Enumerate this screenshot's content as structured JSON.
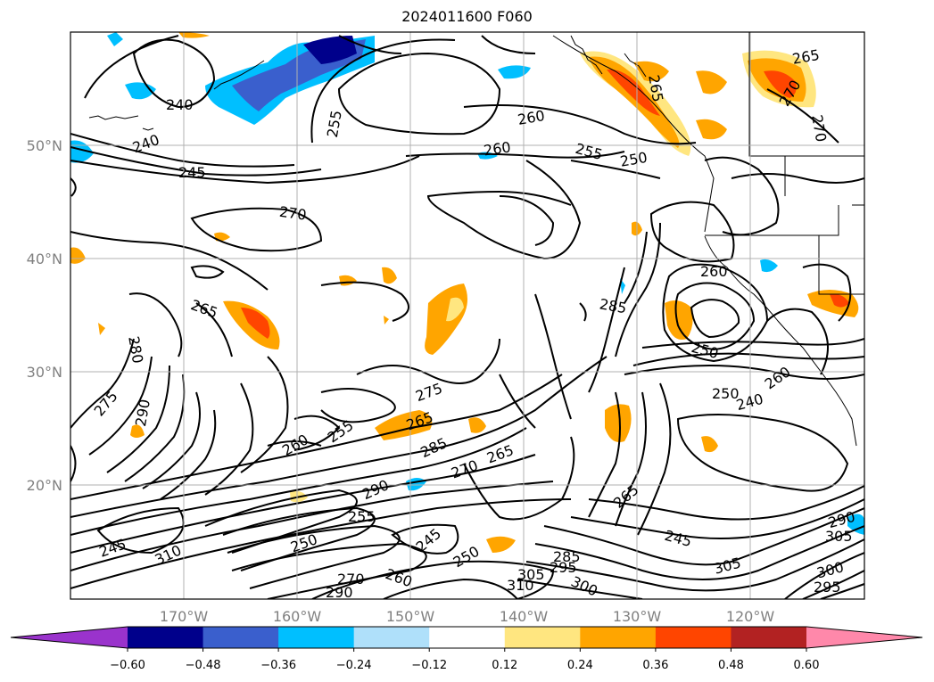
{
  "title": "2024011600 F060",
  "map": {
    "lat_labels": [
      "50°N",
      "40°N",
      "30°N",
      "20°N"
    ],
    "lon_labels": [
      "170°W",
      "160°W",
      "150°W",
      "140°W",
      "130°W",
      "120°W"
    ],
    "contour_labels": [
      {
        "text": "240",
        "name": "contour-label-240a"
      },
      {
        "text": "240",
        "name": "contour-label-240b"
      },
      {
        "text": "245",
        "name": "contour-label-245a"
      },
      {
        "text": "255",
        "name": "contour-label-255a"
      },
      {
        "text": "260",
        "name": "contour-label-260a"
      },
      {
        "text": "260",
        "name": "contour-label-260b"
      },
      {
        "text": "255",
        "name": "contour-label-255b"
      },
      {
        "text": "250",
        "name": "contour-label-250a"
      },
      {
        "text": "265",
        "name": "contour-label-265a"
      },
      {
        "text": "265",
        "name": "contour-label-265b"
      },
      {
        "text": "270",
        "name": "contour-label-270a"
      },
      {
        "text": "270",
        "name": "contour-label-270b"
      },
      {
        "text": "270",
        "name": "contour-label-270c"
      },
      {
        "text": "265",
        "name": "contour-label-265c"
      },
      {
        "text": "280",
        "name": "contour-label-280a"
      },
      {
        "text": "275",
        "name": "contour-label-275a"
      },
      {
        "text": "290",
        "name": "contour-label-290a"
      },
      {
        "text": "285",
        "name": "contour-label-285a"
      },
      {
        "text": "260",
        "name": "contour-label-260c"
      },
      {
        "text": "250",
        "name": "contour-label-250b"
      },
      {
        "text": "260",
        "name": "contour-label-260d"
      },
      {
        "text": "250",
        "name": "contour-label-250c"
      },
      {
        "text": "240",
        "name": "contour-label-240c"
      },
      {
        "text": "275",
        "name": "contour-label-275b"
      },
      {
        "text": "255",
        "name": "contour-label-255c"
      },
      {
        "text": "260",
        "name": "contour-label-260e"
      },
      {
        "text": "265",
        "name": "contour-label-265d"
      },
      {
        "text": "285",
        "name": "contour-label-285b"
      },
      {
        "text": "290",
        "name": "contour-label-290b"
      },
      {
        "text": "270",
        "name": "contour-label-270d"
      },
      {
        "text": "265",
        "name": "contour-label-265e"
      },
      {
        "text": "265",
        "name": "contour-label-265f"
      },
      {
        "text": "255",
        "name": "contour-label-255d"
      },
      {
        "text": "245",
        "name": "contour-label-245b"
      },
      {
        "text": "250",
        "name": "contour-label-250d"
      },
      {
        "text": "250",
        "name": "contour-label-250e"
      },
      {
        "text": "245",
        "name": "contour-label-245c"
      },
      {
        "text": "305",
        "name": "contour-label-305a"
      },
      {
        "text": "285",
        "name": "contour-label-285c"
      },
      {
        "text": "295",
        "name": "contour-label-295a"
      },
      {
        "text": "300",
        "name": "contour-label-300a"
      },
      {
        "text": "310",
        "name": "contour-label-310a"
      },
      {
        "text": "270",
        "name": "contour-label-270e"
      },
      {
        "text": "260",
        "name": "contour-label-260f"
      },
      {
        "text": "290",
        "name": "contour-label-290c"
      },
      {
        "text": "310",
        "name": "contour-label-310b"
      },
      {
        "text": "245",
        "name": "contour-label-245d"
      },
      {
        "text": "305",
        "name": "contour-label-305b"
      },
      {
        "text": "300",
        "name": "contour-label-300b"
      },
      {
        "text": "295",
        "name": "contour-label-295b"
      },
      {
        "text": "290",
        "name": "contour-label-290d"
      },
      {
        "text": "305",
        "name": "contour-label-305c"
      }
    ]
  },
  "colorbar": {
    "ticks": [
      "−0.60",
      "−0.48",
      "−0.36",
      "−0.24",
      "−0.12",
      "0.12",
      "0.24",
      "0.36",
      "0.48",
      "0.60"
    ],
    "colors": [
      "#9a33cc",
      "#00008b",
      "#3a5fcd",
      "#00bfff",
      "#afe0fa",
      "#ffffff",
      "#ffe680",
      "#ffa500",
      "#ff4500",
      "#b22222",
      "#ff88aa"
    ]
  }
}
